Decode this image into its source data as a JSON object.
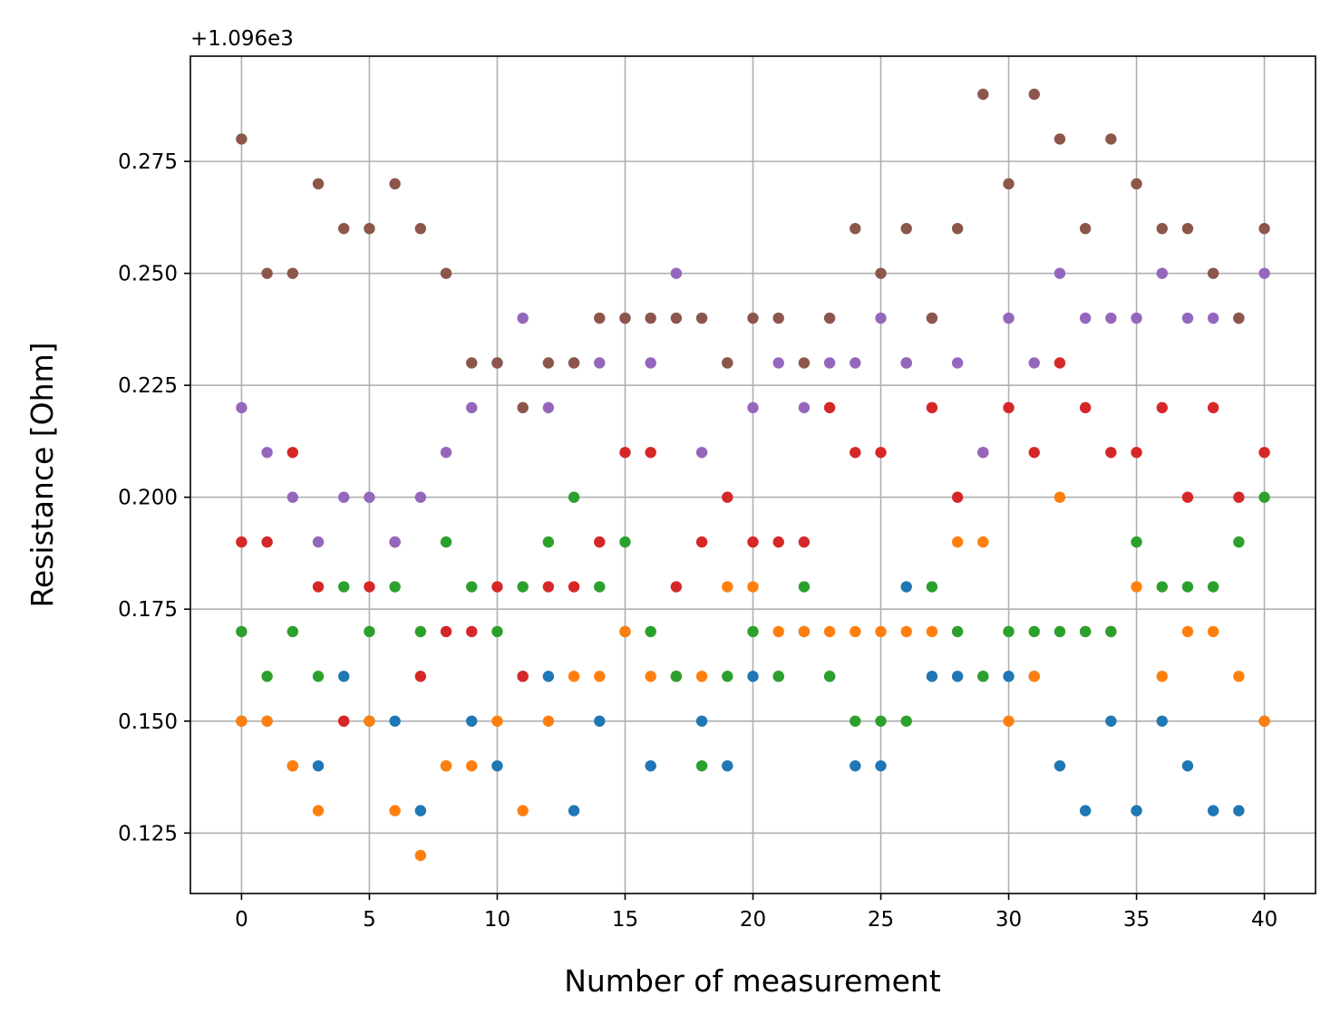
{
  "chart_data": {
    "type": "scatter",
    "title": "",
    "xlabel": "Number of measurement",
    "ylabel": "Resistance [Ohm]",
    "y_offset": 1096,
    "y_offset_label": "+1.096e3",
    "xlim": [
      -2,
      42
    ],
    "ylim": [
      0.1115,
      0.2985
    ],
    "x_ticks": [
      0,
      5,
      10,
      15,
      20,
      25,
      30,
      35,
      40
    ],
    "x_tick_labels": [
      "0",
      "5",
      "10",
      "15",
      "20",
      "25",
      "30",
      "35",
      "40"
    ],
    "y_ticks": [
      0.125,
      0.15,
      0.175,
      0.2,
      0.225,
      0.25,
      0.275
    ],
    "y_tick_labels": [
      "0.125",
      "0.150",
      "0.175",
      "0.200",
      "0.225",
      "0.250",
      "0.275"
    ],
    "grid": true,
    "x": [
      0,
      1,
      2,
      3,
      4,
      5,
      6,
      7,
      8,
      9,
      10,
      11,
      12,
      13,
      14,
      15,
      16,
      17,
      18,
      19,
      20,
      21,
      22,
      23,
      24,
      25,
      26,
      27,
      28,
      29,
      30,
      31,
      32,
      33,
      34,
      35,
      36,
      37,
      38,
      39,
      40
    ],
    "series": [
      {
        "color": "#1f77b4",
        "values": [
          1096.15,
          1096.15,
          1096.14,
          1096.14,
          1096.16,
          1096.15,
          1096.15,
          1096.13,
          1096.14,
          1096.15,
          1096.14,
          1096.16,
          1096.16,
          1096.13,
          1096.15,
          1096.17,
          1096.14,
          1096.16,
          1096.15,
          1096.14,
          1096.16,
          1096.16,
          1096.17,
          1096.16,
          1096.14,
          1096.14,
          1096.18,
          1096.16,
          1096.16,
          1096.16,
          1096.16,
          1096.16,
          1096.14,
          1096.13,
          1096.15,
          1096.13,
          1096.15,
          1096.14,
          1096.13,
          1096.13,
          1096.15
        ]
      },
      {
        "color": "#ff7f0e",
        "values": [
          1096.15,
          1096.15,
          1096.14,
          1096.13,
          1096.15,
          1096.15,
          1096.13,
          1096.12,
          1096.14,
          1096.14,
          1096.15,
          1096.13,
          1096.15,
          1096.16,
          1096.16,
          1096.17,
          1096.16,
          1096.16,
          1096.16,
          1096.18,
          1096.18,
          1096.17,
          1096.17,
          1096.17,
          1096.17,
          1096.17,
          1096.17,
          1096.17,
          1096.19,
          1096.19,
          1096.15,
          1096.16,
          1096.2,
          1096.17,
          1096.17,
          1096.18,
          1096.16,
          1096.17,
          1096.17,
          1096.16,
          1096.15
        ]
      },
      {
        "color": "#2ca02c",
        "values": [
          1096.17,
          1096.16,
          1096.17,
          1096.16,
          1096.18,
          1096.17,
          1096.18,
          1096.17,
          1096.19,
          1096.18,
          1096.17,
          1096.18,
          1096.19,
          1096.2,
          1096.18,
          1096.19,
          1096.17,
          1096.16,
          1096.14,
          1096.16,
          1096.17,
          1096.16,
          1096.18,
          1096.16,
          1096.15,
          1096.15,
          1096.15,
          1096.18,
          1096.17,
          1096.16,
          1096.17,
          1096.17,
          1096.17,
          1096.17,
          1096.17,
          1096.19,
          1096.18,
          1096.18,
          1096.18,
          1096.19,
          1096.2
        ]
      },
      {
        "color": "#d62728",
        "values": [
          1096.19,
          1096.19,
          1096.21,
          1096.18,
          1096.15,
          1096.18,
          1096.19,
          1096.16,
          1096.17,
          1096.17,
          1096.18,
          1096.16,
          1096.18,
          1096.18,
          1096.19,
          1096.21,
          1096.21,
          1096.18,
          1096.19,
          1096.2,
          1096.19,
          1096.19,
          1096.19,
          1096.22,
          1096.21,
          1096.21,
          1096.23,
          1096.22,
          1096.2,
          1096.21,
          1096.22,
          1096.21,
          1096.23,
          1096.22,
          1096.21,
          1096.21,
          1096.22,
          1096.2,
          1096.22,
          1096.2,
          1096.21
        ]
      },
      {
        "color": "#9467bd",
        "values": [
          1096.22,
          1096.21,
          1096.2,
          1096.19,
          1096.2,
          1096.2,
          1096.19,
          1096.2,
          1096.21,
          1096.22,
          1096.23,
          1096.24,
          1096.22,
          1096.23,
          1096.23,
          1096.24,
          1096.23,
          1096.25,
          1096.21,
          1096.23,
          1096.22,
          1096.23,
          1096.22,
          1096.23,
          1096.23,
          1096.24,
          1096.23,
          1096.24,
          1096.23,
          1096.21,
          1096.24,
          1096.23,
          1096.25,
          1096.24,
          1096.24,
          1096.24,
          1096.25,
          1096.24,
          1096.24,
          1096.24,
          1096.25
        ]
      },
      {
        "color": "#8c564b",
        "values": [
          1096.28,
          1096.25,
          1096.25,
          1096.27,
          1096.26,
          1096.26,
          1096.27,
          1096.26,
          1096.25,
          1096.23,
          1096.23,
          1096.22,
          1096.23,
          1096.23,
          1096.24,
          1096.24,
          1096.24,
          1096.24,
          1096.24,
          1096.23,
          1096.24,
          1096.24,
          1096.23,
          1096.24,
          1096.26,
          1096.25,
          1096.26,
          1096.24,
          1096.26,
          1096.29,
          1096.27,
          1096.29,
          1096.28,
          1096.26,
          1096.28,
          1096.27,
          1096.26,
          1096.26,
          1096.25,
          1096.24,
          1096.26
        ]
      }
    ]
  }
}
